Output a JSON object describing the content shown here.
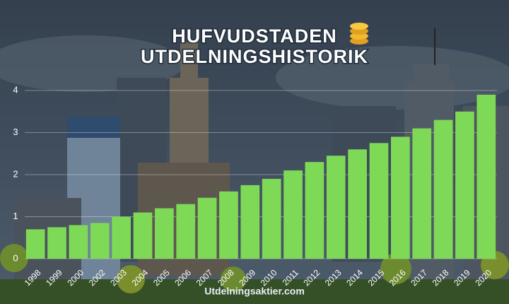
{
  "chart_data": {
    "type": "bar",
    "title": "HUFVUDSTADEN",
    "subtitle": "UTDELNINGSHISTORIK",
    "source": "Utdelningsaktier.com",
    "categories": [
      "1998",
      "1999",
      "2000",
      "2002",
      "2003",
      "2004",
      "2005",
      "2006",
      "2007",
      "2008",
      "2009",
      "2010",
      "2011",
      "2012",
      "2013",
      "2014",
      "2015",
      "2016",
      "2017",
      "2018",
      "2019",
      "2020"
    ],
    "values": [
      0.7,
      0.75,
      0.8,
      0.85,
      1.0,
      1.1,
      1.2,
      1.3,
      1.45,
      1.6,
      1.75,
      1.9,
      2.1,
      2.3,
      2.45,
      2.6,
      2.75,
      2.9,
      3.1,
      3.3,
      3.5,
      3.9
    ],
    "color": "#7ed957",
    "ylim": [
      0,
      4
    ],
    "yticks": [
      0,
      1,
      2,
      3,
      4
    ],
    "grid": true
  }
}
